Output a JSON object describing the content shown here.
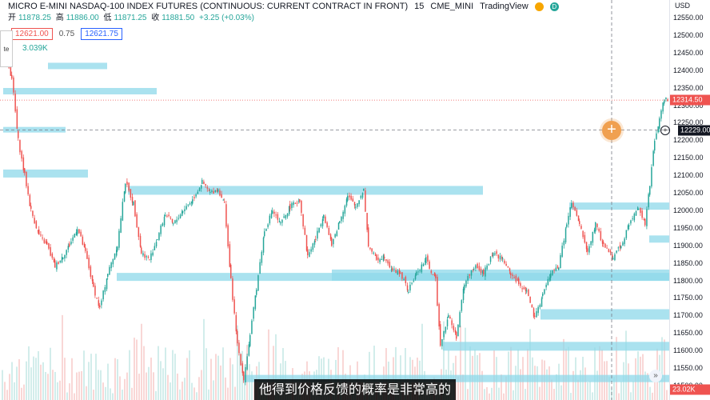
{
  "header": {
    "symbol": "MICRO E-MINI NASDAQ-100 INDEX FUTURES (CONTINUOUS: CURRENT CONTRACT IN FRONT)",
    "interval": "15",
    "exchange": "CME_MINI",
    "source": "TradingView",
    "badge_o": "",
    "badge_d": "D"
  },
  "ohlc": {
    "open_label": "开",
    "open": "11878.25",
    "high_label": "高",
    "high": "11886.00",
    "low_label": "低",
    "low": "11871.25",
    "close_label": "收",
    "close": "11881.50",
    "change": "+3.25 (+0.03%)"
  },
  "order": {
    "sell": "12621.00",
    "spread": "0.75",
    "buy": "12621.75"
  },
  "side_tab": "te",
  "volume_label": "3.039K",
  "axis": {
    "currency": "USD",
    "ticks": [
      "12550.00",
      "12500.00",
      "12450.00",
      "12400.00",
      "12350.00",
      "12300.00",
      "12250.00",
      "12200.00",
      "12150.00",
      "12100.00",
      "12050.00",
      "12000.00",
      "11950.00",
      "11900.00",
      "11850.00",
      "11800.00",
      "11750.00",
      "11700.00",
      "11650.00",
      "11600.00",
      "11550.00",
      "11500.00"
    ],
    "last_price": "12314.50",
    "cursor_price": "12229.00",
    "volume_badge": "23.02K"
  },
  "colors": {
    "up": "#26a69a",
    "down": "#ef5350",
    "zone": "#8dd8ea"
  },
  "subtitle": "他得到价格反馈的概率是非常高的"
}
